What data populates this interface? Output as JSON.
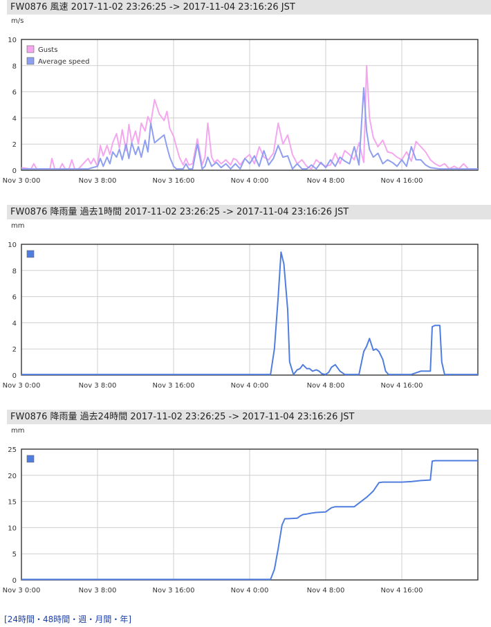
{
  "footer": {
    "open": "[",
    "close": "]",
    "sep": "・",
    "links": [
      "24時間",
      "48時間",
      "週",
      "月間",
      "年"
    ]
  },
  "colors": {
    "gusts": "#f4a6ee",
    "average": "#8e9ef0",
    "rain": "#4f7ddf",
    "grid": "#cfcfcf",
    "axis": "#333333"
  },
  "chart_data": [
    {
      "type": "line",
      "title": "FW0876 風速 2017-11-02 23:26:25 -> 2017-11-04 23:16:26 JST",
      "ylabel": "m/s",
      "ylim": [
        0,
        10
      ],
      "yticks": [
        "0",
        "2",
        "4",
        "6",
        "8",
        "10"
      ],
      "xticks": [
        {
          "label": "Nov 3 0:00",
          "hours": 0
        },
        {
          "label": "Nov 3 8:00",
          "hours": 8
        },
        {
          "label": "Nov 3 16:00",
          "hours": 16
        },
        {
          "label": "Nov 4 0:00",
          "hours": 24
        },
        {
          "label": "Nov 4 8:00",
          "hours": 32
        },
        {
          "label": "Nov 4 16:00",
          "hours": 40
        }
      ],
      "xlim": [
        0,
        48
      ],
      "legend": "top-left",
      "series": [
        {
          "name": "Gusts",
          "color": "#f4a6ee",
          "x": [
            0,
            1,
            1.3,
            1.6,
            2,
            3,
            3.2,
            3.5,
            4,
            4.3,
            4.6,
            5,
            5.3,
            5.6,
            6,
            7,
            7.3,
            7.6,
            8,
            8.3,
            8.6,
            9,
            9.3,
            9.6,
            10,
            10.3,
            10.6,
            11,
            11.3,
            11.6,
            12,
            12.3,
            12.6,
            13,
            13.3,
            13.6,
            14,
            14.5,
            15,
            15.3,
            15.6,
            16,
            16.3,
            16.6,
            17,
            17.3,
            17.6,
            18,
            18.5,
            19,
            19.3,
            19.6,
            20,
            20.3,
            20.6,
            21,
            21.5,
            22,
            22.3,
            22.6,
            23,
            23.5,
            24,
            24.5,
            25,
            25.5,
            26,
            26.5,
            27,
            27.5,
            28,
            28.5,
            29,
            29.5,
            30,
            30.5,
            31,
            31.5,
            32,
            32.5,
            33,
            33.5,
            34,
            34.5,
            35,
            35.5,
            36,
            36.3,
            36.6,
            37,
            37.5,
            38,
            38.5,
            39,
            39.5,
            40,
            40.5,
            41,
            41.5,
            42,
            42.5,
            43,
            43.5,
            44,
            44.5,
            45,
            45.5,
            46,
            46.5,
            47,
            48
          ],
          "y": [
            0.2,
            0.1,
            0.5,
            0.1,
            0.1,
            0.1,
            0.9,
            0.1,
            0.1,
            0.5,
            0.1,
            0.1,
            0.8,
            0.1,
            0.1,
            0.9,
            0.5,
            0.9,
            0.3,
            1.9,
            1.1,
            1.9,
            1.2,
            2.1,
            2.8,
            1.7,
            3.1,
            1.5,
            3.5,
            2.1,
            3.0,
            2.0,
            3.6,
            3.0,
            4.1,
            3.6,
            5.4,
            4.3,
            3.8,
            4.5,
            3.2,
            2.6,
            1.8,
            1.0,
            0.4,
            0.9,
            0.4,
            0.5,
            2.4,
            0.4,
            1.0,
            3.6,
            1.0,
            0.6,
            0.8,
            0.5,
            0.8,
            0.4,
            0.9,
            0.8,
            0.4,
            0.9,
            1.2,
            0.5,
            1.8,
            1.0,
            0.8,
            1.3,
            3.6,
            2.0,
            2.7,
            1.2,
            0.5,
            0.8,
            0.3,
            0.1,
            0.8,
            0.5,
            0.3,
            0.4,
            1.3,
            0.5,
            1.5,
            1.2,
            0.8,
            2.1,
            0.6,
            8.0,
            4.0,
            2.5,
            1.8,
            2.3,
            1.4,
            1.3,
            1.0,
            0.8,
            1.4,
            0.7,
            2.2,
            1.8,
            1.4,
            0.8,
            0.5,
            0.3,
            0.5,
            0.1,
            0.3,
            0.1,
            0.5,
            0.1,
            0.1
          ]
        },
        {
          "name": "Average speed",
          "color": "#8e9ef0",
          "x": [
            0,
            1,
            3,
            5,
            7,
            8,
            8.3,
            8.6,
            9,
            9.3,
            9.6,
            10,
            10.3,
            10.6,
            11,
            11.3,
            11.6,
            12,
            12.3,
            12.6,
            13,
            13.3,
            13.6,
            14,
            14.5,
            15,
            15.3,
            15.6,
            16,
            16.3,
            16.6,
            17,
            17.3,
            17.6,
            18,
            18.5,
            19,
            19.3,
            19.6,
            20,
            20.5,
            21,
            21.5,
            22,
            22.5,
            23,
            23.5,
            24,
            24.5,
            25,
            25.5,
            26,
            26.5,
            27,
            27.5,
            28,
            28.5,
            29,
            29.5,
            30,
            30.5,
            31,
            31.5,
            32,
            32.5,
            33,
            33.5,
            34,
            34.5,
            35,
            35.5,
            36,
            36.3,
            36.6,
            37,
            37.5,
            38,
            38.5,
            39,
            39.5,
            40,
            40.5,
            41,
            41.5,
            42,
            42.5,
            43,
            44,
            45,
            46,
            48
          ],
          "y": [
            0.1,
            0.1,
            0.1,
            0.1,
            0.1,
            0.3,
            0.9,
            0.3,
            1.0,
            0.5,
            1.4,
            1.0,
            1.6,
            0.8,
            2.0,
            0.9,
            2.1,
            1.2,
            1.8,
            1.0,
            2.3,
            1.4,
            3.6,
            2.1,
            2.4,
            2.7,
            1.8,
            1.0,
            0.3,
            0.1,
            0.1,
            0.1,
            0.5,
            0.1,
            0.1,
            2.0,
            0.1,
            0.3,
            1.0,
            0.3,
            0.6,
            0.2,
            0.5,
            0.1,
            0.5,
            0.1,
            0.9,
            0.5,
            1.1,
            0.3,
            1.5,
            0.4,
            0.9,
            1.9,
            1.0,
            1.1,
            0.1,
            0.5,
            0.1,
            0.1,
            0.4,
            0.1,
            0.6,
            0.2,
            0.8,
            0.3,
            1.0,
            0.7,
            0.5,
            1.8,
            0.4,
            6.3,
            3.0,
            1.6,
            1.0,
            1.3,
            0.5,
            0.8,
            0.6,
            0.3,
            0.8,
            0.3,
            1.8,
            0.8,
            0.8,
            0.4,
            0.2,
            0.1,
            0.1,
            0.1,
            0.1
          ]
        }
      ]
    },
    {
      "type": "line",
      "title": "FW0876 降雨量 過去1時間 2017-11-02 23:26:25 -> 2017-11-04 23:16:26 JST",
      "ylabel": "mm",
      "ylim": [
        0,
        10
      ],
      "yticks": [
        "0",
        "2",
        "4",
        "6",
        "8",
        "10"
      ],
      "xticks": [
        {
          "label": "Nov 3 0:00",
          "hours": 0
        },
        {
          "label": "Nov 3 8:00",
          "hours": 8
        },
        {
          "label": "Nov 3 16:00",
          "hours": 16
        },
        {
          "label": "Nov 4 0:00",
          "hours": 24
        },
        {
          "label": "Nov 4 8:00",
          "hours": 32
        },
        {
          "label": "Nov 4 16:00",
          "hours": 40
        }
      ],
      "xlim": [
        0,
        48
      ],
      "legend": "top-left",
      "series": [
        {
          "name": "",
          "color": "#4f7ddf",
          "x": [
            0,
            26.2,
            26.6,
            27,
            27.3,
            27.6,
            28,
            28.2,
            28.6,
            29,
            29.3,
            29.6,
            30,
            30.3,
            30.6,
            31,
            31.3,
            31.6,
            32,
            32.3,
            32.6,
            33,
            33.5,
            34,
            34.3,
            34.6,
            35,
            35.5,
            36,
            36.3,
            36.6,
            37,
            37.3,
            37.6,
            38,
            38.3,
            38.6,
            39,
            40,
            41,
            42,
            42.5,
            43,
            43.2,
            43.5,
            44,
            44.2,
            44.5,
            48
          ],
          "y": [
            0.05,
            0.05,
            2.0,
            6.0,
            9.4,
            8.5,
            5.0,
            1.0,
            0.05,
            0.4,
            0.5,
            0.8,
            0.5,
            0.5,
            0.3,
            0.4,
            0.3,
            0.1,
            0.05,
            0.2,
            0.6,
            0.8,
            0.3,
            0.05,
            0.05,
            0.05,
            0.05,
            0.05,
            1.8,
            2.2,
            2.8,
            1.9,
            2.0,
            1.8,
            1.2,
            0.3,
            0.05,
            0.05,
            0.05,
            0.05,
            0.3,
            0.3,
            0.3,
            3.7,
            3.8,
            3.8,
            1.0,
            0.05,
            0.05
          ]
        }
      ]
    },
    {
      "type": "line",
      "title": "FW0876 降雨量 過去24時間 2017-11-02 23:26:25 -> 2017-11-04 23:16:26 JST",
      "ylabel": "mm",
      "ylim": [
        0,
        25
      ],
      "yticks": [
        "0",
        "5",
        "10",
        "15",
        "20",
        "25"
      ],
      "xticks": [
        {
          "label": "Nov 3 0:00",
          "hours": 0
        },
        {
          "label": "Nov 3 8:00",
          "hours": 8
        },
        {
          "label": "Nov 3 16:00",
          "hours": 16
        },
        {
          "label": "Nov 4 0:00",
          "hours": 24
        },
        {
          "label": "Nov 4 8:00",
          "hours": 32
        },
        {
          "label": "Nov 4 16:00",
          "hours": 40
        }
      ],
      "xlim": [
        0,
        48
      ],
      "legend": "top-left",
      "series": [
        {
          "name": "",
          "color": "#4f7ddf",
          "x": [
            0,
            26.2,
            26.6,
            27,
            27.4,
            27.7,
            28,
            29,
            29.3,
            29.6,
            30,
            30.3,
            30.6,
            31,
            32,
            32.3,
            32.6,
            33,
            34,
            35,
            36.3,
            36.6,
            37,
            37.3,
            37.6,
            38,
            39,
            40,
            41,
            42,
            43,
            43.2,
            43.5,
            44,
            45,
            46,
            47,
            48
          ],
          "y": [
            0.1,
            0.1,
            2.0,
            6.0,
            10.5,
            11.7,
            11.7,
            11.8,
            12.2,
            12.5,
            12.6,
            12.7,
            12.8,
            12.9,
            13.0,
            13.4,
            13.8,
            14.0,
            14.0,
            14.0,
            15.8,
            16.3,
            17.0,
            17.8,
            18.6,
            18.7,
            18.7,
            18.7,
            18.8,
            19.0,
            19.1,
            22.7,
            22.8,
            22.8,
            22.8,
            22.8,
            22.8,
            22.8
          ]
        }
      ]
    }
  ]
}
